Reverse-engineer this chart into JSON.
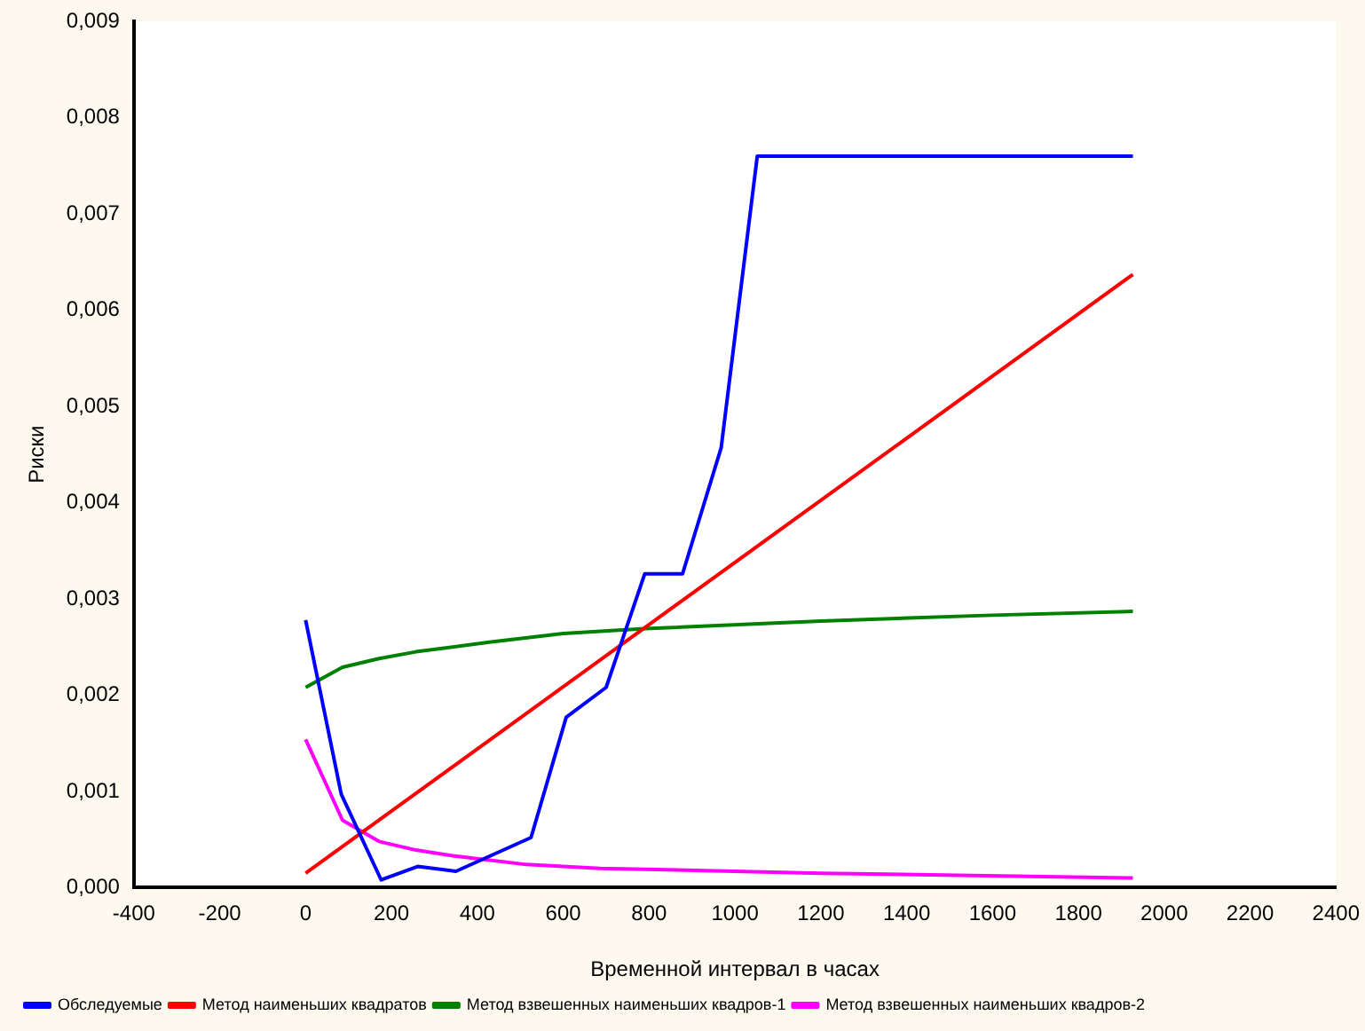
{
  "chart_data": {
    "type": "line",
    "xlabel": "Временной интервал в часах",
    "ylabel": "Риски",
    "xlim": [
      -400,
      2400
    ],
    "xticks": [
      -400,
      -200,
      0,
      200,
      400,
      600,
      800,
      1000,
      1200,
      1400,
      1600,
      1800,
      2000,
      2200,
      2400
    ],
    "ylim": [
      0,
      0.009
    ],
    "yticks": [
      {
        "value": 0,
        "label": "0,000"
      },
      {
        "value": 0.001,
        "label": "0,001"
      },
      {
        "value": 0.002,
        "label": "0,002"
      },
      {
        "value": 0.003,
        "label": "0,003"
      },
      {
        "value": 0.004,
        "label": "0,004"
      },
      {
        "value": 0.005,
        "label": "0,005"
      },
      {
        "value": 0.006,
        "label": "0,006"
      },
      {
        "value": 0.007,
        "label": "0,007"
      },
      {
        "value": 0.008,
        "label": "0,008"
      },
      {
        "value": 0.009,
        "label": "0,009"
      }
    ],
    "grid": false,
    "legend": "bottom left",
    "marker": "none",
    "line_style": "solid",
    "series": [
      {
        "name": "Обследуемые",
        "color": "#0000ff",
        "x": [
          0,
          83,
          176,
          261,
          350,
          525,
          607,
          700,
          790,
          878,
          968,
          1052,
          1927
        ],
        "values": [
          0.00278,
          0.00097,
          8e-05,
          0.00022,
          0.00017,
          0.00052,
          0.00177,
          0.00208,
          0.00326,
          0.00326,
          0.00457,
          0.0076,
          0.0076
        ]
      },
      {
        "name": "Метод наименьших квадратов",
        "color": "#ff0000",
        "x": [
          0,
          1927
        ],
        "values": [
          0.00015,
          0.00637
        ]
      },
      {
        "name": "Метод взвешенных наименьших квадров-1",
        "color": "#008000",
        "x": [
          0,
          86,
          171,
          257,
          428,
          600,
          790,
          1200,
          1600,
          1927
        ],
        "values": [
          0.00208,
          0.00229,
          0.00238,
          0.00245,
          0.00255,
          0.00264,
          0.00269,
          0.00277,
          0.00283,
          0.00287
        ]
      },
      {
        "name": "Метод взвешенных наименьших квадров-2",
        "color": "#ff00ff",
        "x": [
          0,
          86,
          171,
          257,
          343,
          514,
          686,
          1200,
          1927
        ],
        "values": [
          0.00154,
          0.0007,
          0.00048,
          0.00039,
          0.00033,
          0.00024,
          0.0002,
          0.00015,
          0.0001
        ]
      }
    ]
  }
}
